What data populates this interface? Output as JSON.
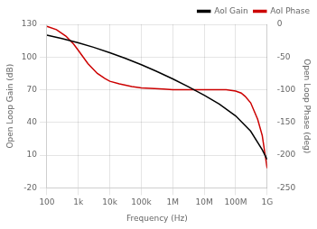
{
  "chart_data": {
    "type": "line",
    "xlabel": "Frequency (Hz)",
    "ylabel": "Open Loop Gain (dB)",
    "y2label": "Open Loop Phase (deg)",
    "log": "x",
    "xlim": [
      100,
      1000000000
    ],
    "xticks": [
      100,
      {
        "value": 1000,
        "label": "1k"
      },
      {
        "value": 10000,
        "label": "10k"
      },
      {
        "value": 100000,
        "label": "100k"
      },
      {
        "value": 1000000,
        "label": "1M"
      },
      {
        "value": 10000000,
        "label": "10M"
      },
      {
        "value": 100000000,
        "label": "100M"
      },
      {
        "value": 1000000000,
        "label": "1G"
      }
    ],
    "ylim": [
      -20,
      130
    ],
    "yticks": [
      -20,
      10,
      40,
      70,
      100,
      130
    ],
    "y2lim": [
      -250,
      0
    ],
    "y2ticks": [
      -250,
      -200,
      -150,
      -100,
      -50,
      0
    ],
    "grid": true,
    "legend": "upper right",
    "series": [
      {
        "name": "Aol Gain",
        "color": "#000000",
        "x": [
          100,
          300,
          1000,
          3000,
          10000,
          30000,
          100000,
          300000,
          1000000,
          3000000,
          10000000,
          30000000,
          100000000,
          300000000,
          700000000,
          1000000000
        ],
        "values": [
          120,
          117,
          113,
          109,
          104,
          99,
          93,
          87,
          80,
          73,
          65,
          57,
          46,
          32,
          15,
          6
        ]
      },
      {
        "name": "Aol Phase",
        "color": "#cc0000",
        "axis": "y2",
        "x": [
          100,
          200,
          400,
          700,
          1000,
          2000,
          4000,
          7000,
          10000,
          20000,
          50000,
          100000,
          500000,
          1000000,
          5000000,
          10000000,
          50000000,
          100000000,
          150000000,
          200000000,
          300000000,
          500000000,
          700000000,
          900000000,
          1000000000
        ],
        "values": [
          -3,
          -8,
          -18,
          -30,
          -40,
          -60,
          -75,
          -83,
          -87,
          -91,
          -95,
          -97,
          -99,
          -100,
          -100,
          -100,
          -100,
          -102,
          -105,
          -110,
          -120,
          -145,
          -170,
          -205,
          -220
        ]
      }
    ]
  }
}
